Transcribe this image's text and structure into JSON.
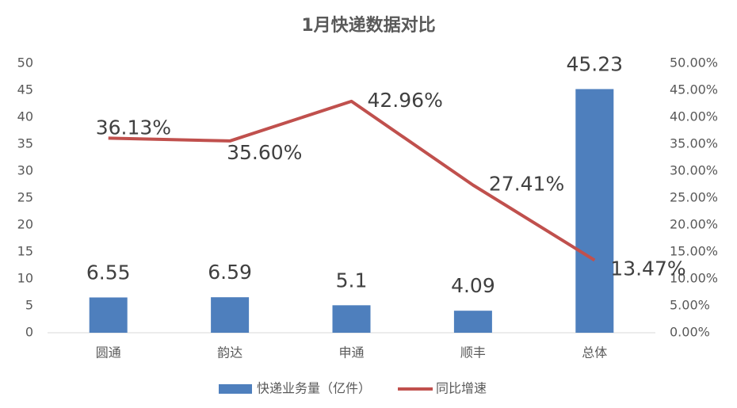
{
  "chart_data": {
    "type": "bar-line",
    "title": "1月快递数据对比",
    "categories": [
      "圆通",
      "韵达",
      "申通",
      "顺丰",
      "总体"
    ],
    "series": [
      {
        "name": "快递业务量（亿件）",
        "type": "bar",
        "color": "#4e7fbd",
        "values": [
          6.55,
          6.59,
          5.1,
          4.09,
          45.23
        ]
      },
      {
        "name": "同比增速",
        "type": "line",
        "axis": "y2",
        "color": "#c0504d",
        "values": [
          36.13,
          35.6,
          42.96,
          27.41,
          13.47
        ],
        "value_labels": [
          "36.13%",
          "35.60%",
          "42.96%",
          "27.41%",
          "13.47%"
        ]
      }
    ],
    "ylim": [
      0,
      50
    ],
    "yticks": [
      0,
      5,
      10,
      15,
      20,
      25,
      30,
      35,
      40,
      45,
      50
    ],
    "y2lim": [
      0,
      50
    ],
    "y2ticks": [
      {
        "value": 0,
        "label": "0.00%"
      },
      {
        "value": 5,
        "label": "5.00%"
      },
      {
        "value": 10,
        "label": "10.00%"
      },
      {
        "value": 15,
        "label": "15.00%"
      },
      {
        "value": 20,
        "label": "20.00%"
      },
      {
        "value": 25,
        "label": "25.00%"
      },
      {
        "value": 30,
        "label": "30.00%"
      },
      {
        "value": 35,
        "label": "35.00%"
      },
      {
        "value": 40,
        "label": "40.00%"
      },
      {
        "value": 45,
        "label": "45.00%"
      },
      {
        "value": 50,
        "label": "50.00%"
      }
    ],
    "grid": false,
    "legend": "bottom"
  }
}
